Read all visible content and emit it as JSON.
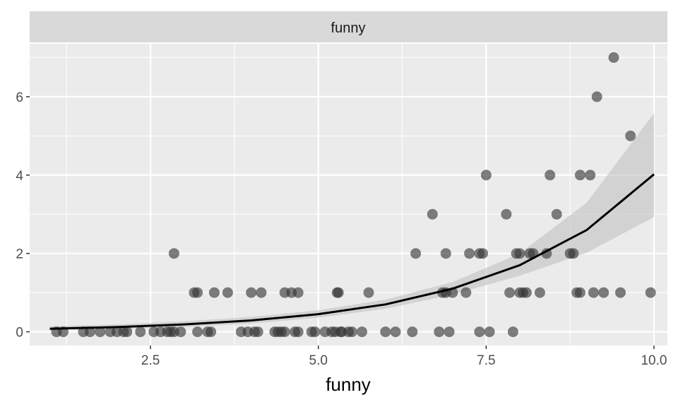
{
  "chart_data": {
    "type": "scatter",
    "facet_label": "funny",
    "xlabel": "funny",
    "ylabel": "",
    "xlim": [
      0.7,
      10.2
    ],
    "ylim": [
      -0.35,
      7.35
    ],
    "x_ticks": [
      2.5,
      5.0,
      7.5,
      10.0
    ],
    "x_tick_labels": [
      "2.5",
      "5.0",
      "7.5",
      "10.0"
    ],
    "x_minor": [
      1.25,
      3.75,
      6.25,
      8.75
    ],
    "y_ticks": [
      0,
      2,
      4,
      6
    ],
    "y_tick_labels": [
      "0",
      "2",
      "4",
      "6"
    ],
    "y_minor": [
      1,
      3,
      5,
      7
    ],
    "points": [
      {
        "x": 1.1,
        "y": 0
      },
      {
        "x": 1.2,
        "y": 0
      },
      {
        "x": 1.5,
        "y": 0
      },
      {
        "x": 1.6,
        "y": 0
      },
      {
        "x": 1.75,
        "y": 0
      },
      {
        "x": 1.9,
        "y": 0
      },
      {
        "x": 2.0,
        "y": 0
      },
      {
        "x": 2.1,
        "y": 0
      },
      {
        "x": 2.15,
        "y": 0
      },
      {
        "x": 2.35,
        "y": 0
      },
      {
        "x": 2.55,
        "y": 0
      },
      {
        "x": 2.65,
        "y": 0
      },
      {
        "x": 2.75,
        "y": 0
      },
      {
        "x": 2.8,
        "y": 0
      },
      {
        "x": 2.85,
        "y": 0
      },
      {
        "x": 2.95,
        "y": 0
      },
      {
        "x": 2.85,
        "y": 2
      },
      {
        "x": 3.15,
        "y": 1
      },
      {
        "x": 3.2,
        "y": 1
      },
      {
        "x": 3.2,
        "y": 0
      },
      {
        "x": 3.35,
        "y": 0
      },
      {
        "x": 3.4,
        "y": 0
      },
      {
        "x": 3.45,
        "y": 1
      },
      {
        "x": 3.65,
        "y": 1
      },
      {
        "x": 3.85,
        "y": 0
      },
      {
        "x": 3.95,
        "y": 0
      },
      {
        "x": 4.0,
        "y": 1
      },
      {
        "x": 4.05,
        "y": 0
      },
      {
        "x": 4.1,
        "y": 0
      },
      {
        "x": 4.15,
        "y": 1
      },
      {
        "x": 4.35,
        "y": 0
      },
      {
        "x": 4.4,
        "y": 0
      },
      {
        "x": 4.45,
        "y": 0
      },
      {
        "x": 4.5,
        "y": 0
      },
      {
        "x": 4.5,
        "y": 1
      },
      {
        "x": 4.6,
        "y": 1
      },
      {
        "x": 4.65,
        "y": 0
      },
      {
        "x": 4.7,
        "y": 1
      },
      {
        "x": 4.7,
        "y": 0
      },
      {
        "x": 4.9,
        "y": 0
      },
      {
        "x": 4.95,
        "y": 0
      },
      {
        "x": 5.1,
        "y": 0
      },
      {
        "x": 5.2,
        "y": 0
      },
      {
        "x": 5.25,
        "y": 0
      },
      {
        "x": 5.28,
        "y": 1
      },
      {
        "x": 5.3,
        "y": 1
      },
      {
        "x": 5.33,
        "y": 0
      },
      {
        "x": 5.35,
        "y": 0
      },
      {
        "x": 5.45,
        "y": 0
      },
      {
        "x": 5.5,
        "y": 0
      },
      {
        "x": 5.65,
        "y": 0
      },
      {
        "x": 5.75,
        "y": 1
      },
      {
        "x": 6.0,
        "y": 0
      },
      {
        "x": 6.15,
        "y": 0
      },
      {
        "x": 6.4,
        "y": 0
      },
      {
        "x": 6.45,
        "y": 2
      },
      {
        "x": 6.7,
        "y": 3
      },
      {
        "x": 6.8,
        "y": 0
      },
      {
        "x": 6.85,
        "y": 1
      },
      {
        "x": 6.9,
        "y": 2
      },
      {
        "x": 6.9,
        "y": 1
      },
      {
        "x": 6.95,
        "y": 0
      },
      {
        "x": 7.0,
        "y": 1
      },
      {
        "x": 7.2,
        "y": 1
      },
      {
        "x": 7.25,
        "y": 2
      },
      {
        "x": 7.4,
        "y": 2
      },
      {
        "x": 7.45,
        "y": 2
      },
      {
        "x": 7.4,
        "y": 0
      },
      {
        "x": 7.5,
        "y": 4
      },
      {
        "x": 7.55,
        "y": 0
      },
      {
        "x": 7.8,
        "y": 3
      },
      {
        "x": 7.85,
        "y": 1
      },
      {
        "x": 7.9,
        "y": 0
      },
      {
        "x": 7.95,
        "y": 2
      },
      {
        "x": 8.0,
        "y": 2
      },
      {
        "x": 8.0,
        "y": 1
      },
      {
        "x": 8.05,
        "y": 1
      },
      {
        "x": 8.1,
        "y": 1
      },
      {
        "x": 8.15,
        "y": 2
      },
      {
        "x": 8.2,
        "y": 2
      },
      {
        "x": 8.3,
        "y": 1
      },
      {
        "x": 8.4,
        "y": 2
      },
      {
        "x": 8.45,
        "y": 4
      },
      {
        "x": 8.55,
        "y": 3
      },
      {
        "x": 8.75,
        "y": 2
      },
      {
        "x": 8.8,
        "y": 2
      },
      {
        "x": 8.85,
        "y": 1
      },
      {
        "x": 8.9,
        "y": 1
      },
      {
        "x": 8.9,
        "y": 4
      },
      {
        "x": 9.05,
        "y": 4
      },
      {
        "x": 9.1,
        "y": 1
      },
      {
        "x": 9.15,
        "y": 6
      },
      {
        "x": 9.25,
        "y": 1
      },
      {
        "x": 9.4,
        "y": 7
      },
      {
        "x": 9.5,
        "y": 1
      },
      {
        "x": 9.65,
        "y": 5
      },
      {
        "x": 9.95,
        "y": 1
      }
    ],
    "fit_line": [
      {
        "x": 1,
        "y": 0.08
      },
      {
        "x": 2,
        "y": 0.12
      },
      {
        "x": 3,
        "y": 0.19
      },
      {
        "x": 4,
        "y": 0.29
      },
      {
        "x": 5,
        "y": 0.45
      },
      {
        "x": 6,
        "y": 0.7
      },
      {
        "x": 7,
        "y": 1.1
      },
      {
        "x": 8,
        "y": 1.7
      },
      {
        "x": 9,
        "y": 2.6
      },
      {
        "x": 10,
        "y": 4.02
      }
    ],
    "ci_upper": [
      {
        "x": 1,
        "y": 0.14
      },
      {
        "x": 2,
        "y": 0.19
      },
      {
        "x": 3,
        "y": 0.27
      },
      {
        "x": 4,
        "y": 0.38
      },
      {
        "x": 5,
        "y": 0.55
      },
      {
        "x": 6,
        "y": 0.82
      },
      {
        "x": 7,
        "y": 1.27
      },
      {
        "x": 8,
        "y": 2.0
      },
      {
        "x": 9,
        "y": 3.3
      },
      {
        "x": 10,
        "y": 5.58
      }
    ],
    "ci_lower": [
      {
        "x": 1,
        "y": 0.04
      },
      {
        "x": 2,
        "y": 0.07
      },
      {
        "x": 3,
        "y": 0.12
      },
      {
        "x": 4,
        "y": 0.21
      },
      {
        "x": 5,
        "y": 0.36
      },
      {
        "x": 6,
        "y": 0.59
      },
      {
        "x": 7,
        "y": 0.95
      },
      {
        "x": 8,
        "y": 1.43
      },
      {
        "x": 9,
        "y": 2.02
      },
      {
        "x": 10,
        "y": 2.93
      }
    ],
    "colors": {
      "panel": "#ebebeb",
      "strip": "#d9d9d9",
      "grid": "#ffffff",
      "point": "#333333",
      "line": "#000000",
      "ribbon": "#c2c2c2",
      "tick": "#333333"
    }
  }
}
